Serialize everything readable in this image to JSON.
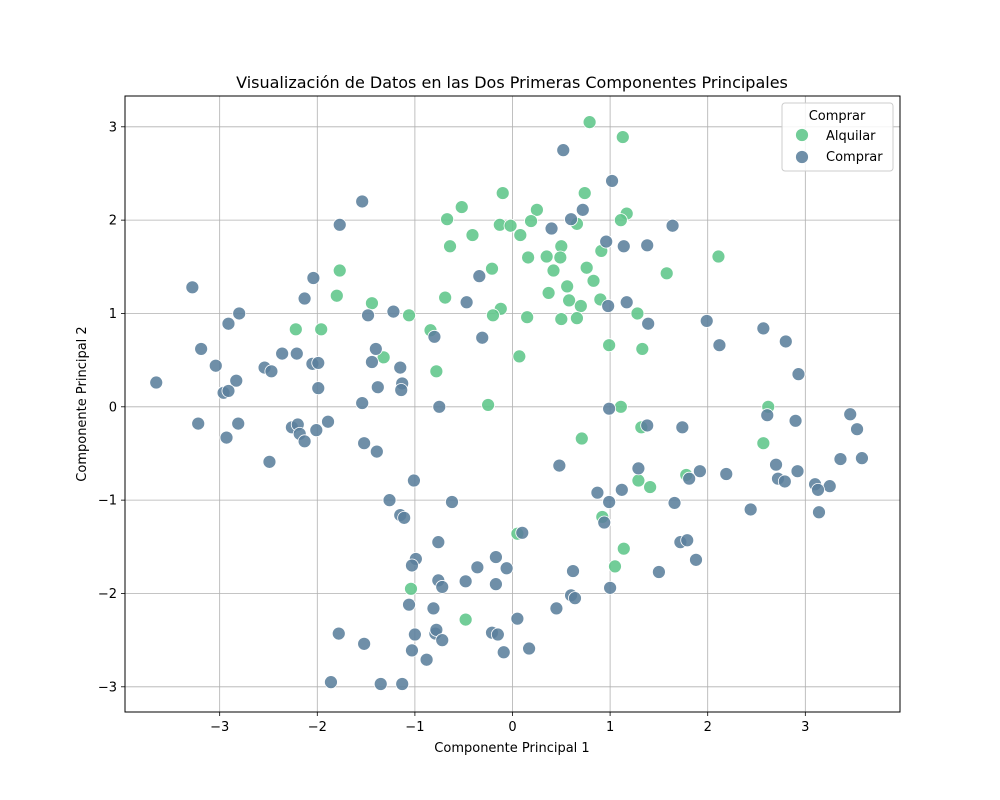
{
  "chart_data": {
    "type": "scatter",
    "title": "Visualización de Datos en las Dos Primeras Componentes Principales",
    "xlabel": "Componente Principal 1",
    "ylabel": "Componente Principal 2",
    "xlim": [
      -3.97,
      3.97
    ],
    "ylim": [
      -3.27,
      3.33
    ],
    "xticks": [
      -3,
      -2,
      -1,
      0,
      1,
      2,
      3
    ],
    "xtick_labels": [
      "−3",
      "−2",
      "−1",
      "0",
      "1",
      "2",
      "3"
    ],
    "yticks": [
      -3,
      -2,
      -1,
      0,
      1,
      2,
      3
    ],
    "ytick_labels": [
      "−3",
      "−2",
      "−1",
      "0",
      "1",
      "2",
      "3"
    ],
    "grid": true,
    "legend": {
      "title": "Comprar",
      "position": "top-right"
    },
    "series": [
      {
        "name": "Alquilar",
        "color": "#5ec68a",
        "points": [
          [
            0.79,
            3.05
          ],
          [
            1.13,
            2.89
          ],
          [
            0.74,
            2.29
          ],
          [
            -0.1,
            2.29
          ],
          [
            -0.52,
            2.14
          ],
          [
            0.25,
            2.11
          ],
          [
            1.17,
            2.07
          ],
          [
            -0.67,
            2.01
          ],
          [
            1.11,
            2.0
          ],
          [
            0.19,
            1.99
          ],
          [
            0.66,
            1.96
          ],
          [
            -0.13,
            1.95
          ],
          [
            -0.02,
            1.94
          ],
          [
            0.08,
            1.84
          ],
          [
            -0.41,
            1.84
          ],
          [
            0.5,
            1.72
          ],
          [
            -0.64,
            1.72
          ],
          [
            0.91,
            1.67
          ],
          [
            0.35,
            1.61
          ],
          [
            0.16,
            1.6
          ],
          [
            0.49,
            1.6
          ],
          [
            2.11,
            1.61
          ],
          [
            0.76,
            1.49
          ],
          [
            -0.21,
            1.48
          ],
          [
            1.58,
            1.43
          ],
          [
            0.42,
            1.46
          ],
          [
            -1.77,
            1.46
          ],
          [
            0.83,
            1.35
          ],
          [
            0.56,
            1.29
          ],
          [
            0.37,
            1.22
          ],
          [
            -1.8,
            1.19
          ],
          [
            -0.69,
            1.17
          ],
          [
            0.58,
            1.14
          ],
          [
            -1.44,
            1.11
          ],
          [
            0.9,
            1.15
          ],
          [
            0.7,
            1.08
          ],
          [
            -0.12,
            1.05
          ],
          [
            1.28,
            1.0
          ],
          [
            -0.2,
            0.98
          ],
          [
            -1.06,
            0.98
          ],
          [
            0.15,
            0.96
          ],
          [
            0.5,
            0.94
          ],
          [
            0.66,
            0.95
          ],
          [
            -2.22,
            0.83
          ],
          [
            -1.96,
            0.83
          ],
          [
            -0.84,
            0.82
          ],
          [
            0.99,
            0.66
          ],
          [
            1.33,
            0.62
          ],
          [
            -1.32,
            0.53
          ],
          [
            0.07,
            0.54
          ],
          [
            -0.78,
            0.38
          ],
          [
            -0.25,
            0.02
          ],
          [
            2.62,
            0.0
          ],
          [
            1.11,
            0.0
          ],
          [
            1.32,
            -0.22
          ],
          [
            0.71,
            -0.34
          ],
          [
            2.57,
            -0.39
          ],
          [
            1.78,
            -0.73
          ],
          [
            1.29,
            -0.79
          ],
          [
            1.41,
            -0.86
          ],
          [
            0.92,
            -1.18
          ],
          [
            0.05,
            -1.36
          ],
          [
            1.14,
            -1.52
          ],
          [
            1.05,
            -1.71
          ],
          [
            -1.04,
            -1.95
          ],
          [
            -0.48,
            -2.28
          ]
        ]
      },
      {
        "name": "Comprar",
        "color": "#5b7f9c",
        "points": [
          [
            0.52,
            2.75
          ],
          [
            1.02,
            2.42
          ],
          [
            -1.54,
            2.2
          ],
          [
            0.72,
            2.11
          ],
          [
            0.6,
            2.01
          ],
          [
            -1.77,
            1.95
          ],
          [
            0.4,
            1.91
          ],
          [
            1.64,
            1.94
          ],
          [
            0.96,
            1.77
          ],
          [
            1.38,
            1.73
          ],
          [
            1.14,
            1.72
          ],
          [
            -0.34,
            1.4
          ],
          [
            -2.04,
            1.38
          ],
          [
            -3.28,
            1.28
          ],
          [
            -2.13,
            1.16
          ],
          [
            -0.47,
            1.12
          ],
          [
            1.17,
            1.12
          ],
          [
            0.98,
            1.08
          ],
          [
            -1.22,
            1.02
          ],
          [
            -2.8,
            1.0
          ],
          [
            -1.48,
            0.98
          ],
          [
            1.39,
            0.89
          ],
          [
            -2.91,
            0.89
          ],
          [
            1.99,
            0.92
          ],
          [
            2.57,
            0.84
          ],
          [
            2.8,
            0.7
          ],
          [
            -0.31,
            0.74
          ],
          [
            -0.8,
            0.75
          ],
          [
            2.12,
            0.66
          ],
          [
            -3.19,
            0.62
          ],
          [
            -1.4,
            0.62
          ],
          [
            -2.21,
            0.57
          ],
          [
            -2.36,
            0.57
          ],
          [
            -1.44,
            0.48
          ],
          [
            -2.05,
            0.46
          ],
          [
            -1.99,
            0.47
          ],
          [
            -3.04,
            0.44
          ],
          [
            -2.54,
            0.42
          ],
          [
            -1.15,
            0.42
          ],
          [
            -2.47,
            0.38
          ],
          [
            2.93,
            0.35
          ],
          [
            -2.83,
            0.28
          ],
          [
            -1.13,
            0.25
          ],
          [
            -3.65,
            0.26
          ],
          [
            -1.99,
            0.2
          ],
          [
            -1.38,
            0.21
          ],
          [
            -2.96,
            0.15
          ],
          [
            -1.14,
            0.18
          ],
          [
            -2.91,
            0.17
          ],
          [
            -1.54,
            0.04
          ],
          [
            -0.75,
            0.0
          ],
          [
            0.99,
            -0.02
          ],
          [
            3.46,
            -0.08
          ],
          [
            2.61,
            -0.09
          ],
          [
            2.9,
            -0.15
          ],
          [
            -1.89,
            -0.16
          ],
          [
            -3.22,
            -0.18
          ],
          [
            -2.81,
            -0.18
          ],
          [
            1.38,
            -0.2
          ],
          [
            1.74,
            -0.22
          ],
          [
            -2.26,
            -0.22
          ],
          [
            -2.2,
            -0.19
          ],
          [
            -2.01,
            -0.25
          ],
          [
            3.53,
            -0.24
          ],
          [
            -2.18,
            -0.29
          ],
          [
            -2.13,
            -0.37
          ],
          [
            -2.93,
            -0.33
          ],
          [
            -1.52,
            -0.39
          ],
          [
            -1.39,
            -0.48
          ],
          [
            3.36,
            -0.56
          ],
          [
            3.58,
            -0.55
          ],
          [
            -2.49,
            -0.59
          ],
          [
            0.48,
            -0.63
          ],
          [
            1.29,
            -0.66
          ],
          [
            2.7,
            -0.62
          ],
          [
            1.92,
            -0.69
          ],
          [
            2.92,
            -0.69
          ],
          [
            2.19,
            -0.72
          ],
          [
            1.81,
            -0.77
          ],
          [
            2.72,
            -0.77
          ],
          [
            -1.01,
            -0.79
          ],
          [
            2.79,
            -0.8
          ],
          [
            3.1,
            -0.83
          ],
          [
            3.25,
            -0.85
          ],
          [
            3.13,
            -0.89
          ],
          [
            1.12,
            -0.89
          ],
          [
            0.87,
            -0.92
          ],
          [
            -1.26,
            -1.0
          ],
          [
            0.99,
            -1.02
          ],
          [
            -0.62,
            -1.02
          ],
          [
            1.66,
            -1.03
          ],
          [
            2.44,
            -1.1
          ],
          [
            3.14,
            -1.13
          ],
          [
            -1.15,
            -1.16
          ],
          [
            -1.11,
            -1.19
          ],
          [
            0.94,
            -1.24
          ],
          [
            0.1,
            -1.35
          ],
          [
            1.72,
            -1.45
          ],
          [
            1.79,
            -1.43
          ],
          [
            -0.76,
            -1.45
          ],
          [
            -0.17,
            -1.61
          ],
          [
            -0.99,
            -1.63
          ],
          [
            -1.03,
            -1.7
          ],
          [
            1.88,
            -1.64
          ],
          [
            -0.36,
            -1.72
          ],
          [
            -0.06,
            -1.73
          ],
          [
            0.62,
            -1.76
          ],
          [
            1.5,
            -1.77
          ],
          [
            -0.76,
            -1.86
          ],
          [
            -0.48,
            -1.87
          ],
          [
            -0.17,
            -1.9
          ],
          [
            -0.72,
            -1.93
          ],
          [
            1.0,
            -1.94
          ],
          [
            0.6,
            -2.02
          ],
          [
            0.64,
            -2.05
          ],
          [
            -1.06,
            -2.12
          ],
          [
            0.45,
            -2.16
          ],
          [
            -0.81,
            -2.16
          ],
          [
            0.05,
            -2.27
          ],
          [
            -0.21,
            -2.42
          ],
          [
            -1.78,
            -2.43
          ],
          [
            -0.79,
            -2.43
          ],
          [
            -0.78,
            -2.39
          ],
          [
            -1.0,
            -2.44
          ],
          [
            -0.15,
            -2.44
          ],
          [
            -0.72,
            -2.5
          ],
          [
            -1.52,
            -2.54
          ],
          [
            0.17,
            -2.59
          ],
          [
            -1.03,
            -2.61
          ],
          [
            -0.09,
            -2.63
          ],
          [
            -0.88,
            -2.71
          ],
          [
            -1.86,
            -2.95
          ],
          [
            -1.35,
            -2.97
          ],
          [
            -1.13,
            -2.97
          ]
        ]
      }
    ]
  }
}
